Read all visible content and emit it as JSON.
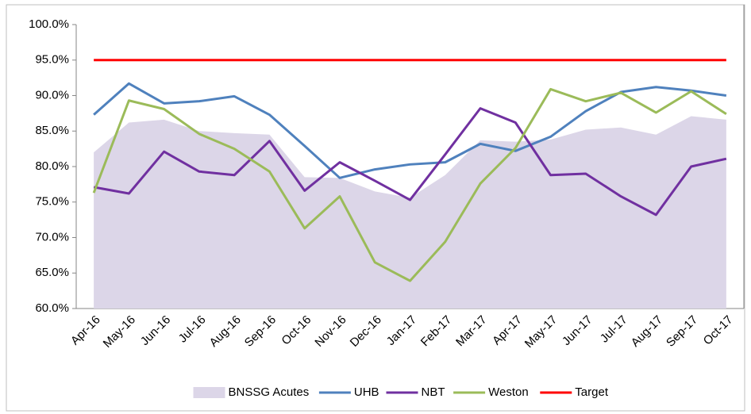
{
  "chart_data": {
    "type": "line",
    "categories": [
      "Apr-16",
      "May-16",
      "Jun-16",
      "Jul-16",
      "Aug-16",
      "Sep-16",
      "Oct-16",
      "Nov-16",
      "Dec-16",
      "Jan-17",
      "Feb-17",
      "Mar-17",
      "Apr-17",
      "May-17",
      "Jun-17",
      "Jul-17",
      "Aug-17",
      "Sep-17",
      "Oct-17"
    ],
    "series": [
      {
        "name": "BNSSG Acutes",
        "style": "area",
        "color": "#dcd6e8",
        "values": [
          82.0,
          86.2,
          86.6,
          85.0,
          84.7,
          84.5,
          78.5,
          78.4,
          76.5,
          75.6,
          78.8,
          83.7,
          83.5,
          83.8,
          85.2,
          85.5,
          84.5,
          87.1,
          86.6
        ]
      },
      {
        "name": "UHB",
        "style": "line",
        "color": "#4f81bd",
        "values": [
          87.3,
          91.7,
          88.9,
          89.2,
          89.9,
          87.3,
          82.9,
          78.4,
          79.6,
          80.3,
          80.6,
          83.2,
          82.2,
          84.2,
          87.8,
          90.5,
          91.2,
          90.7,
          90.0
        ]
      },
      {
        "name": "NBT",
        "style": "line",
        "color": "#7030a0",
        "values": [
          77.1,
          76.2,
          82.1,
          79.3,
          78.8,
          83.6,
          76.6,
          80.6,
          78.0,
          75.3,
          81.7,
          88.2,
          86.2,
          78.8,
          79.0,
          75.8,
          73.2,
          80.0,
          81.1
        ]
      },
      {
        "name": "Weston",
        "style": "line",
        "color": "#9bbb59",
        "values": [
          76.3,
          89.3,
          88.1,
          84.6,
          82.5,
          79.3,
          71.3,
          75.8,
          66.5,
          63.9,
          69.4,
          77.6,
          82.6,
          90.9,
          89.2,
          90.4,
          87.6,
          90.6,
          87.4
        ]
      },
      {
        "name": "Target",
        "style": "line",
        "color": "#ff0000",
        "values": [
          95,
          95,
          95,
          95,
          95,
          95,
          95,
          95,
          95,
          95,
          95,
          95,
          95,
          95,
          95,
          95,
          95,
          95,
          95
        ]
      }
    ],
    "ylim": [
      60,
      100
    ],
    "yticks": [
      {
        "value": 60,
        "label": "60.0%"
      },
      {
        "value": 65,
        "label": "65.0%"
      },
      {
        "value": 70,
        "label": "70.0%"
      },
      {
        "value": 75,
        "label": "75.0%"
      },
      {
        "value": 80,
        "label": "80.0%"
      },
      {
        "value": 85,
        "label": "85.0%"
      },
      {
        "value": 90,
        "label": "90.0%"
      },
      {
        "value": 95,
        "label": "95.0%"
      },
      {
        "value": 100,
        "label": "100.0%"
      }
    ],
    "grid": false,
    "legend": "bottom"
  }
}
